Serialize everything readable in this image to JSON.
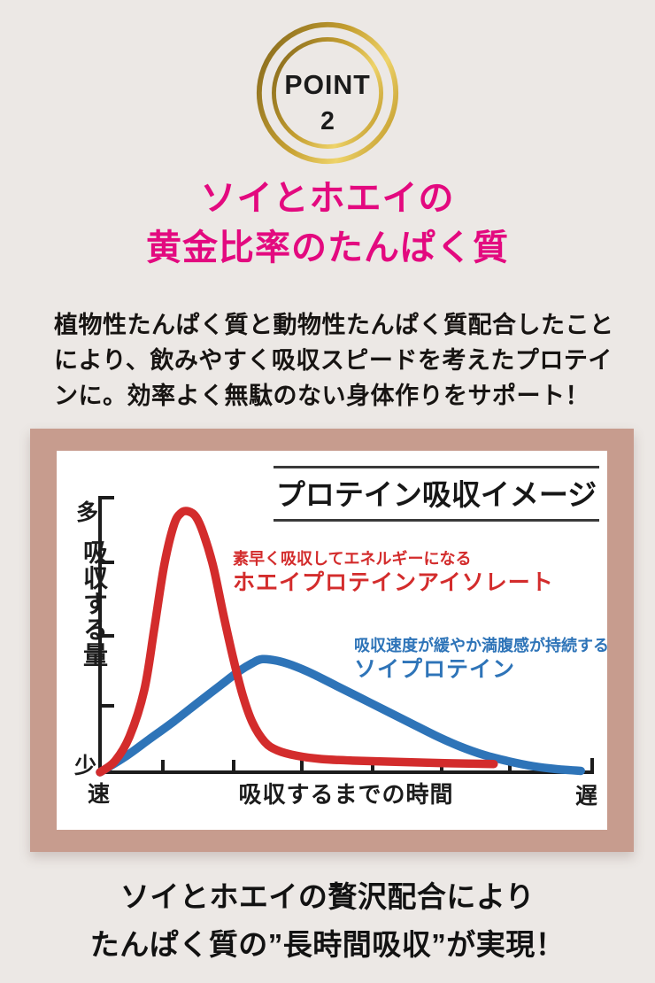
{
  "badge": {
    "label": "POINT",
    "number": "2"
  },
  "headline": "ソイとホエイの\n黄金比率のたんぱく質",
  "lead": "植物性たんぱく質と動物性たんぱく質配合したこと\nにより、飲みやすく吸収スピードを考えたプロテイ\nンに。効率よく無駄のない身体作りをサポート！",
  "closing": "ソイとホエイの贅沢配合により\nたんぱく質の”長時間吸収”が実現！",
  "colors": {
    "background": "#ece8e5",
    "accent_pink": "#e3097f",
    "frame": "#c79c8e",
    "gold_dark": "#8d6f1e",
    "gold_mid": "#c7a132",
    "gold_light": "#eed36a",
    "whey_red": "#d32c2c",
    "soy_blue": "#2e74b8"
  },
  "chart_data": {
    "type": "line",
    "title": "プロテイン吸収イメージ",
    "xlabel": "吸収するまでの時間",
    "ylabel": "吸収する量",
    "x_axis_ends": {
      "left": "速",
      "right": "遅"
    },
    "y_axis_ends": {
      "top": "多",
      "bottom": "少"
    },
    "x_range": [
      0,
      100
    ],
    "y_range": [
      0,
      100
    ],
    "grid": false,
    "legend_position": "inline-annotations",
    "series": [
      {
        "name": "ホエイプロテインアイソレート",
        "caption": "素早く吸収してエネルギーになる",
        "color": "#d32c2c",
        "points": [
          [
            0,
            0
          ],
          [
            3,
            4
          ],
          [
            6,
            13
          ],
          [
            9,
            30
          ],
          [
            11,
            52
          ],
          [
            13,
            75
          ],
          [
            15,
            90
          ],
          [
            16.5,
            94.5
          ],
          [
            18,
            95
          ],
          [
            19.5,
            93
          ],
          [
            21,
            87
          ],
          [
            23,
            75
          ],
          [
            25,
            58
          ],
          [
            27,
            42
          ],
          [
            29,
            28
          ],
          [
            31,
            18
          ],
          [
            33.5,
            11
          ],
          [
            36,
            8
          ],
          [
            40,
            6
          ],
          [
            45,
            4.8
          ],
          [
            52,
            4.2
          ],
          [
            60,
            3.8
          ],
          [
            70,
            3.3
          ],
          [
            80,
            3
          ]
        ]
      },
      {
        "name": "ソイプロテイン",
        "caption": "吸収速度が緩やか満腹感が持続する",
        "color": "#2e74b8",
        "points": [
          [
            0,
            0
          ],
          [
            5,
            5.5
          ],
          [
            10,
            12
          ],
          [
            15,
            18.5
          ],
          [
            20,
            25.5
          ],
          [
            24,
            31
          ],
          [
            28,
            36.5
          ],
          [
            31,
            39.8
          ],
          [
            33,
            41.2
          ],
          [
            36,
            40.6
          ],
          [
            39,
            39
          ],
          [
            43,
            36
          ],
          [
            48,
            31.5
          ],
          [
            53,
            27
          ],
          [
            58,
            22.5
          ],
          [
            63,
            18
          ],
          [
            68,
            13.5
          ],
          [
            73,
            9.5
          ],
          [
            78,
            6.3
          ],
          [
            83,
            4
          ],
          [
            88,
            2.2
          ],
          [
            93,
            1.1
          ],
          [
            97.7,
            0.5
          ]
        ]
      }
    ]
  }
}
